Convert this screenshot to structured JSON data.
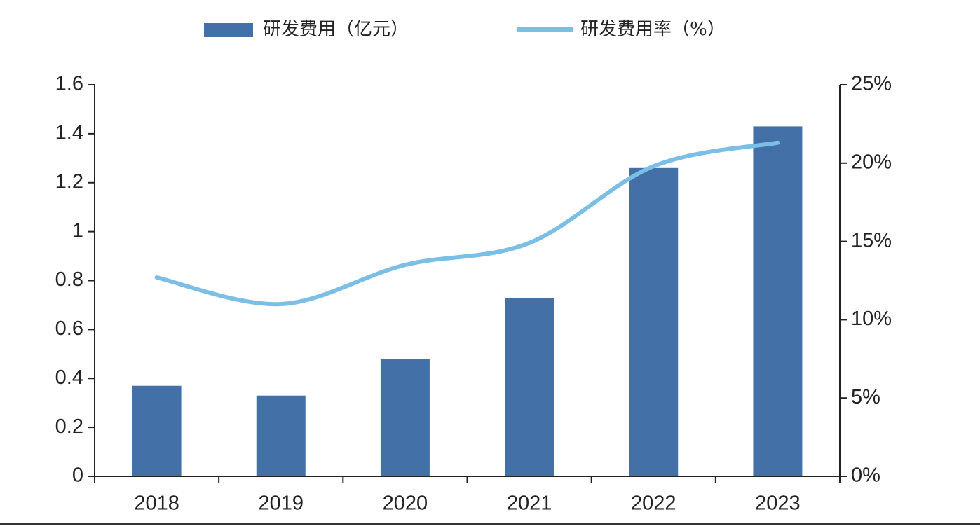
{
  "chart_data": {
    "type": "bar-line",
    "categories": [
      "2018",
      "2019",
      "2020",
      "2021",
      "2022",
      "2023"
    ],
    "series": [
      {
        "name": "研发费用（亿元）",
        "color": "#4470a8",
        "type": "bar",
        "axis": "y",
        "values": [
          0.37,
          0.33,
          0.48,
          0.73,
          1.26,
          1.43
        ]
      },
      {
        "name": "研发费用率（%）",
        "color": "#7cbfe6",
        "type": "line",
        "axis": "y2",
        "values": [
          12.7,
          11.0,
          13.5,
          14.9,
          19.8,
          21.3
        ]
      }
    ],
    "ylim": [
      0,
      1.6
    ],
    "yticks": [
      0,
      0.2,
      0.4,
      0.6,
      0.8,
      1,
      1.2,
      1.4,
      1.6
    ],
    "y2lim": [
      0,
      25
    ],
    "y2ticks": [
      {
        "value": 0,
        "label": "0%"
      },
      {
        "value": 5,
        "label": "5%"
      },
      {
        "value": 10,
        "label": "10%"
      },
      {
        "value": 15,
        "label": "15%"
      },
      {
        "value": 20,
        "label": "20%"
      },
      {
        "value": 25,
        "label": "25%"
      }
    ],
    "legend": "top",
    "grid": false
  }
}
